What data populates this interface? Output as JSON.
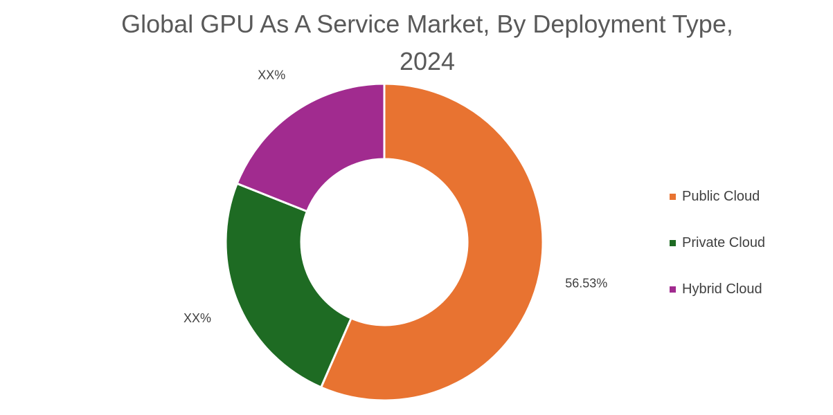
{
  "chart_data": {
    "type": "pie",
    "title": "Global GPU As A Service Market, By Deployment Type, 2024",
    "title_lines": [
      "Global GPU As A Service Market, By Deployment Type,",
      "2024"
    ],
    "donut": true,
    "legend_position": "right",
    "slices": [
      {
        "name": "Public Cloud",
        "value": 56.53,
        "label": "56.53%",
        "color": "#E87331"
      },
      {
        "name": "Private Cloud",
        "value": 24.5,
        "label": "XX%",
        "color": "#1E6B23"
      },
      {
        "name": "Hybrid Cloud",
        "value": 18.97,
        "label": "XX%",
        "color": "#A12B8F"
      }
    ]
  }
}
